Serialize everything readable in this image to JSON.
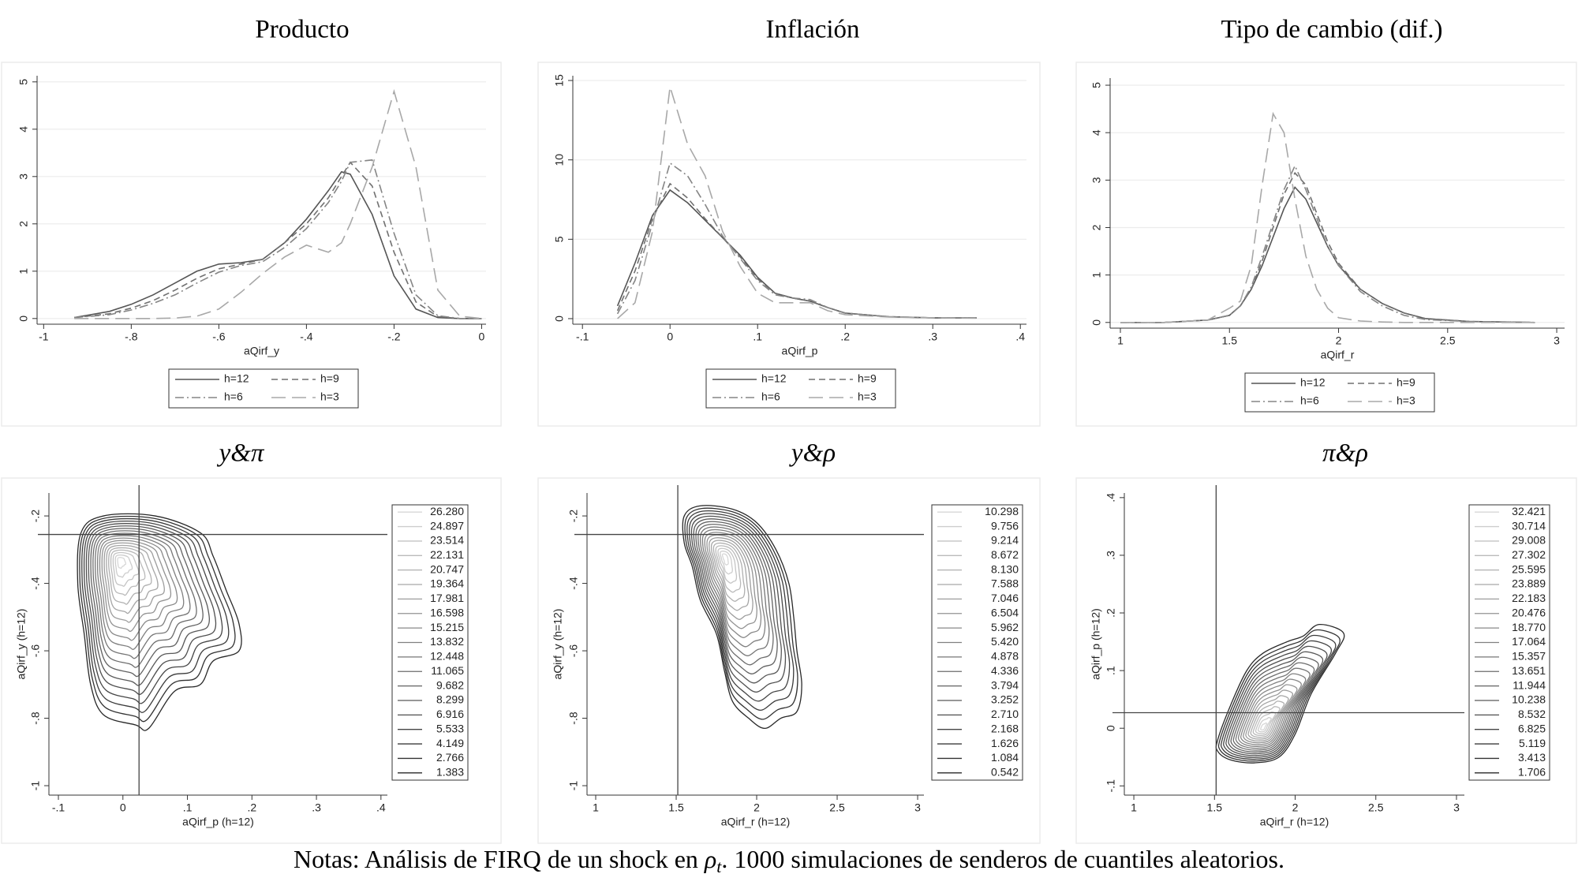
{
  "chart_data": [
    {
      "type": "line",
      "title": "Producto",
      "xlabel": "aQirf_y",
      "grid": true,
      "xlim": [
        -1.015,
        0.01
      ],
      "ylim": [
        -0.12,
        5.13
      ],
      "xticks": [
        -1,
        {
          "value": -0.8,
          "label": "-.8"
        },
        {
          "value": -0.6,
          "label": "-.6"
        },
        {
          "value": -0.4,
          "label": "-.4"
        },
        {
          "value": -0.2,
          "label": "-.2"
        },
        0
      ],
      "yticks": [
        0,
        1,
        2,
        3,
        4,
        5
      ],
      "x": [
        -0.93,
        -0.85,
        -0.8,
        -0.75,
        -0.7,
        -0.65,
        -0.6,
        -0.55,
        -0.5,
        -0.45,
        -0.4,
        -0.35,
        -0.32,
        -0.3,
        -0.25,
        -0.2,
        -0.15,
        -0.1,
        -0.05,
        0
      ],
      "series": [
        {
          "name": "h=12",
          "color": "#555555",
          "dash": "solid",
          "values": [
            0.02,
            0.15,
            0.3,
            0.5,
            0.75,
            1.0,
            1.15,
            1.18,
            1.25,
            1.6,
            2.1,
            2.7,
            3.1,
            3.05,
            2.2,
            0.9,
            0.2,
            0.02,
            0,
            0
          ]
        },
        {
          "name": "h=9",
          "color": "#707070",
          "dash": "dash",
          "values": [
            0.02,
            0.1,
            0.22,
            0.38,
            0.6,
            0.85,
            1.05,
            1.15,
            1.25,
            1.6,
            2.0,
            2.55,
            3.0,
            3.3,
            2.8,
            1.4,
            0.35,
            0.04,
            0,
            0
          ]
        },
        {
          "name": "h=6",
          "color": "#858585",
          "dash": "dashdot",
          "values": [
            0.02,
            0.08,
            0.18,
            0.32,
            0.5,
            0.75,
            0.98,
            1.12,
            1.2,
            1.5,
            1.9,
            2.45,
            2.9,
            3.3,
            3.35,
            1.8,
            0.5,
            0.06,
            0,
            0
          ]
        },
        {
          "name": "h=3",
          "color": "#a8a8a8",
          "dash": "longdash",
          "values": [
            0,
            0,
            0,
            0,
            0.01,
            0.05,
            0.2,
            0.55,
            0.95,
            1.3,
            1.55,
            1.4,
            1.6,
            2.0,
            3.2,
            4.8,
            3.2,
            0.6,
            0.05,
            0
          ]
        }
      ]
    },
    {
      "type": "line",
      "title": "Inflación",
      "xlabel": "aQirf_p",
      "grid": true,
      "xlim": [
        -0.111,
        0.407
      ],
      "ylim": [
        -0.35,
        15.3
      ],
      "xticks": [
        {
          "value": -0.1,
          "label": "-.1"
        },
        0,
        {
          "value": 0.1,
          "label": ".1"
        },
        {
          "value": 0.2,
          "label": ".2"
        },
        {
          "value": 0.3,
          "label": ".3"
        },
        {
          "value": 0.4,
          "label": ".4"
        }
      ],
      "yticks": [
        0,
        5,
        10,
        15
      ],
      "x": [
        -0.06,
        -0.04,
        -0.02,
        0,
        0.02,
        0.04,
        0.06,
        0.08,
        0.1,
        0.12,
        0.14,
        0.16,
        0.18,
        0.2,
        0.25,
        0.3,
        0.35
      ],
      "series": [
        {
          "name": "h=12",
          "color": "#555555",
          "dash": "solid",
          "values": [
            0.8,
            3.5,
            6.5,
            8.1,
            7.3,
            6.2,
            5.1,
            4.0,
            2.6,
            1.6,
            1.3,
            1.1,
            0.7,
            0.35,
            0.12,
            0.05,
            0.05
          ]
        },
        {
          "name": "h=9",
          "color": "#707070",
          "dash": "dash",
          "values": [
            0.5,
            3.0,
            6.3,
            8.5,
            7.6,
            6.3,
            5.1,
            3.9,
            2.5,
            1.6,
            1.3,
            1.1,
            0.7,
            0.35,
            0.12,
            0.05,
            0.05
          ]
        },
        {
          "name": "h=6",
          "color": "#858585",
          "dash": "dashdot",
          "values": [
            0.3,
            2.4,
            6.0,
            9.8,
            9.0,
            7.2,
            5.2,
            3.8,
            2.4,
            1.5,
            1.3,
            1.2,
            0.7,
            0.35,
            0.12,
            0.05,
            0.05
          ]
        },
        {
          "name": "h=3",
          "color": "#a8a8a8",
          "dash": "longdash",
          "values": [
            0,
            1.0,
            5.5,
            14.6,
            11.0,
            9.0,
            5.5,
            3.3,
            1.6,
            1.0,
            1.0,
            1.0,
            0.5,
            0.25,
            0.1,
            0.05,
            0.03
          ]
        }
      ]
    },
    {
      "type": "line",
      "title": "Tipo de cambio (dif.)",
      "xlabel": "aQirf_r",
      "grid": true,
      "xlim": [
        0.953,
        3.036
      ],
      "ylim": [
        -0.12,
        5.15
      ],
      "xticks": [
        1,
        1.5,
        2,
        2.5,
        3
      ],
      "yticks": [
        0,
        1,
        2,
        3,
        4,
        5
      ],
      "x": [
        1,
        1.2,
        1.4,
        1.5,
        1.55,
        1.6,
        1.65,
        1.7,
        1.75,
        1.8,
        1.85,
        1.9,
        1.95,
        2,
        2.1,
        2.2,
        2.3,
        2.4,
        2.6,
        2.9
      ],
      "series": [
        {
          "name": "h=12",
          "color": "#555555",
          "dash": "solid",
          "values": [
            0,
            0,
            0.05,
            0.15,
            0.35,
            0.7,
            1.2,
            1.8,
            2.4,
            2.85,
            2.6,
            2.1,
            1.6,
            1.2,
            0.7,
            0.4,
            0.2,
            0.08,
            0.02,
            0
          ]
        },
        {
          "name": "h=9",
          "color": "#707070",
          "dash": "dash",
          "values": [
            0,
            0,
            0.05,
            0.15,
            0.35,
            0.7,
            1.3,
            2.0,
            2.7,
            3.15,
            2.9,
            2.3,
            1.7,
            1.25,
            0.7,
            0.4,
            0.2,
            0.08,
            0.02,
            0
          ]
        },
        {
          "name": "h=6",
          "color": "#858585",
          "dash": "dashdot",
          "values": [
            0,
            0,
            0.05,
            0.15,
            0.35,
            0.75,
            1.4,
            2.1,
            2.8,
            3.3,
            2.8,
            2.2,
            1.6,
            1.2,
            0.65,
            0.35,
            0.15,
            0.06,
            0.02,
            0
          ]
        },
        {
          "name": "h=3",
          "color": "#a8a8a8",
          "dash": "longdash",
          "values": [
            0,
            0,
            0.05,
            0.3,
            0.45,
            1.2,
            2.9,
            4.4,
            4.0,
            2.6,
            1.4,
            0.7,
            0.3,
            0.1,
            0.03,
            0.01,
            0,
            0,
            0,
            0
          ]
        }
      ]
    },
    {
      "type": "contour",
      "title": "y&π",
      "xlabel": "aQirf_p (h=12)",
      "ylabel": "aQirf_y (h=12)",
      "xlim": [
        -0.1147,
        0.41
      ],
      "ylim": [
        -1.028,
        -0.132
      ],
      "xticks": [
        {
          "value": -0.1,
          "label": "-.1"
        },
        0,
        {
          "value": 0.1,
          "label": ".1"
        },
        {
          "value": 0.2,
          "label": ".2"
        },
        {
          "value": 0.3,
          "label": ".3"
        },
        {
          "value": 0.4,
          "label": ".4"
        }
      ],
      "yticks": [
        {
          "value": -0.2,
          "label": "-.2"
        },
        {
          "value": -0.4,
          "label": "-.4"
        },
        {
          "value": -0.6,
          "label": "-.6"
        },
        {
          "value": -0.8,
          "label": "-.8"
        },
        -1
      ],
      "xline": 0.025,
      "yline": -0.255,
      "levels": [
        26.28,
        24.897,
        23.514,
        22.131,
        20.747,
        19.364,
        17.981,
        16.598,
        15.215,
        13.832,
        12.448,
        11.065,
        9.682,
        8.299,
        6.916,
        5.533,
        4.149,
        2.766,
        1.383
      ],
      "level_labels": [
        "26.280",
        "24.897",
        "23.514",
        "22.131",
        "20.747",
        "19.364",
        "17.981",
        "16.598",
        "15.215",
        "13.832",
        "12.448",
        "11.065",
        "9.682",
        "8.299",
        "6.916",
        "5.533",
        "4.149",
        "2.766",
        "1.383"
      ],
      "peak": {
        "x": -0.005,
        "y": -0.33
      },
      "outer_contour": {
        "x": [
          -0.03,
          0.05,
          0.12,
          0.14,
          0.16,
          0.18,
          0.18,
          0.14,
          0.12,
          0.08,
          0.04,
          0.02,
          -0.03,
          -0.05,
          -0.06,
          -0.07,
          -0.065
        ],
        "y": [
          -0.2,
          -0.2,
          -0.25,
          -0.32,
          -0.42,
          -0.52,
          -0.6,
          -0.63,
          -0.7,
          -0.72,
          -0.83,
          -0.82,
          -0.79,
          -0.7,
          -0.55,
          -0.4,
          -0.25
        ]
      }
    },
    {
      "type": "contour",
      "title": "y&ρ",
      "xlabel": "aQirf_r (h=12)",
      "ylabel": "aQirf_y (h=12)",
      "xlim": [
        0.946,
        3.039
      ],
      "ylim": [
        -1.028,
        -0.132
      ],
      "xticks": [
        1,
        1.5,
        2,
        2.5,
        3
      ],
      "yticks": [
        {
          "value": -0.2,
          "label": "-.2"
        },
        {
          "value": -0.4,
          "label": "-.4"
        },
        {
          "value": -0.6,
          "label": "-.6"
        },
        {
          "value": -0.8,
          "label": "-.8"
        },
        -1
      ],
      "xline": 1.51,
      "yline": -0.255,
      "levels": [
        10.298,
        9.756,
        9.214,
        8.672,
        8.13,
        7.588,
        7.046,
        6.504,
        5.962,
        5.42,
        4.878,
        4.336,
        3.794,
        3.252,
        2.71,
        2.168,
        1.626,
        1.084,
        0.542
      ],
      "level_labels": [
        "10.298",
        "9.756",
        "9.214",
        "8.672",
        "8.130",
        "7.588",
        "7.046",
        "6.504",
        "5.962",
        "5.420",
        "4.878",
        "4.336",
        "3.794",
        "3.252",
        "2.710",
        "2.168",
        "1.626",
        "1.084",
        "0.542"
      ],
      "peak": {
        "x": 1.8,
        "y": -0.32
      },
      "outer_contour": {
        "x": [
          1.55,
          1.65,
          1.85,
          2.0,
          2.12,
          2.2,
          2.23,
          2.25,
          2.28,
          2.25,
          2.15,
          2.05,
          1.95,
          1.85,
          1.8,
          1.75,
          1.65,
          1.6,
          1.55
        ],
        "y": [
          -0.2,
          -0.17,
          -0.18,
          -0.22,
          -0.3,
          -0.4,
          -0.5,
          -0.6,
          -0.7,
          -0.78,
          -0.8,
          -0.83,
          -0.8,
          -0.75,
          -0.66,
          -0.55,
          -0.45,
          -0.35,
          -0.28
        ]
      }
    },
    {
      "type": "contour",
      "title": "π&ρ",
      "xlabel": "aQirf_r (h=12)",
      "ylabel": "aQirf_p (h=12)",
      "xlim": [
        0.941,
        3.049
      ],
      "ylim": [
        -0.116,
        0.408
      ],
      "xticks": [
        1,
        1.5,
        2,
        2.5,
        3
      ],
      "yticks": [
        {
          "value": -0.1,
          "label": "-.1"
        },
        0,
        {
          "value": 0.1,
          "label": ".1"
        },
        {
          "value": 0.2,
          "label": ".2"
        },
        {
          "value": 0.3,
          "label": ".3"
        },
        {
          "value": 0.4,
          "label": ".4"
        }
      ],
      "xline": 1.51,
      "yline": 0.027,
      "levels": [
        32.421,
        30.714,
        29.008,
        27.302,
        25.595,
        23.889,
        22.183,
        20.476,
        18.77,
        17.064,
        15.357,
        13.651,
        11.944,
        10.238,
        8.532,
        6.825,
        5.119,
        3.413,
        1.706
      ],
      "level_labels": [
        "32.421",
        "30.714",
        "29.008",
        "27.302",
        "25.595",
        "23.889",
        "22.183",
        "20.476",
        "18.770",
        "17.064",
        "15.357",
        "13.651",
        "11.944",
        "10.238",
        "8.532",
        "6.825",
        "5.119",
        "3.413",
        "1.706"
      ],
      "peak": {
        "x": 1.8,
        "y": 0.0
      },
      "outer_contour": {
        "x": [
          1.52,
          1.6,
          1.7,
          1.8,
          1.95,
          2.05,
          2.15,
          2.3,
          2.25,
          2.1,
          2.0,
          1.9,
          1.75,
          1.6,
          1.52
        ],
        "y": [
          -0.02,
          0.04,
          0.1,
          0.13,
          0.15,
          0.16,
          0.18,
          0.165,
          0.13,
          0.06,
          -0.01,
          -0.05,
          -0.06,
          -0.055,
          -0.04
        ]
      }
    }
  ],
  "note": [
    "Notas: Análisis de FIRQ de un shock en ",
    "ρ",
    "t",
    ". 1000 simulaciones de senderos de cuantiles aleatorios."
  ]
}
